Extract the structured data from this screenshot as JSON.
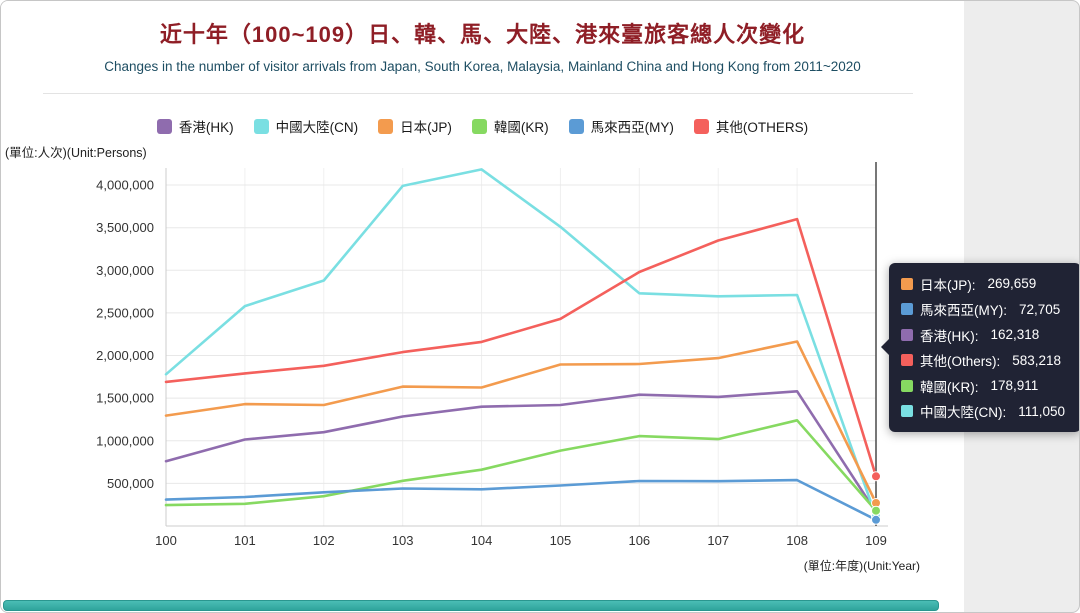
{
  "page": {
    "title": "近十年（100~109）日、韓、馬、大陸、港來臺旅客總人次變化",
    "subtitle": "Changes in the number of visitor arrivals from Japan, South Korea, Malaysia, Mainland China and Hong Kong from 2011~2020",
    "y_unit_label": "(單位:人次)(Unit:Persons)",
    "x_unit_label": "(單位:年度)(Unit:Year)"
  },
  "chart_data": {
    "type": "line",
    "title": "近十年（100~109）日、韓、馬、大陸、港來臺旅客總人次變化",
    "x": [
      100,
      101,
      102,
      103,
      104,
      105,
      106,
      107,
      108,
      109
    ],
    "xlabel": "(單位:年度)(Unit:Year)",
    "ylabel": "(單位:人次)(Unit:Persons)",
    "ylim": [
      0,
      4200000
    ],
    "ytick_interval": 500000,
    "ytick_labels": [
      "500,000",
      "1,000,000",
      "1,500,000",
      "2,000,000",
      "2,500,000",
      "3,000,000",
      "3,500,000",
      "4,000,000"
    ],
    "grid": true,
    "legend_position": "top",
    "crosshair_x": 109,
    "series": [
      {
        "name": "香港(HK)",
        "color": "#8f6cae",
        "values": [
          760000,
          1015000,
          1100000,
          1285000,
          1400000,
          1420000,
          1540000,
          1515000,
          1580000,
          162318
        ]
      },
      {
        "name": "中國大陸(CN)",
        "color": "#7adfe2",
        "values": [
          1780000,
          2580000,
          2880000,
          3990000,
          4184000,
          3510000,
          2730000,
          2695000,
          2710000,
          111050
        ]
      },
      {
        "name": "日本(JP)",
        "color": "#f39b4e",
        "values": [
          1295000,
          1430000,
          1420000,
          1635000,
          1625000,
          1895000,
          1900000,
          1970000,
          2165000,
          269659
        ]
      },
      {
        "name": "韓國(KR)",
        "color": "#86d961",
        "values": [
          245000,
          260000,
          350000,
          530000,
          660000,
          885000,
          1055000,
          1020000,
          1240000,
          178911
        ]
      },
      {
        "name": "馬來西亞(MY)",
        "color": "#5b9bd5",
        "values": [
          310000,
          340000,
          395000,
          440000,
          430000,
          475000,
          528000,
          526000,
          538000,
          72705
        ]
      },
      {
        "name": "其他(OTHERS)",
        "color": "#f4605c",
        "values": [
          1690000,
          1790000,
          1880000,
          2040000,
          2160000,
          2430000,
          2980000,
          3350000,
          3600000,
          583218
        ]
      }
    ]
  },
  "tooltip": {
    "rows": [
      {
        "label": "日本(JP):",
        "value": "269,659",
        "color": "#f39b4e"
      },
      {
        "label": "馬來西亞(MY):",
        "value": "72,705",
        "color": "#5b9bd5"
      },
      {
        "label": "香港(HK):",
        "value": "162,318",
        "color": "#8f6cae"
      },
      {
        "label": "其他(Others):",
        "value": "583,218",
        "color": "#f4605c"
      },
      {
        "label": "韓國(KR):",
        "value": "178,911",
        "color": "#86d961"
      },
      {
        "label": "中國大陸(CN):",
        "value": "111,050",
        "color": "#7adfe2"
      }
    ]
  }
}
